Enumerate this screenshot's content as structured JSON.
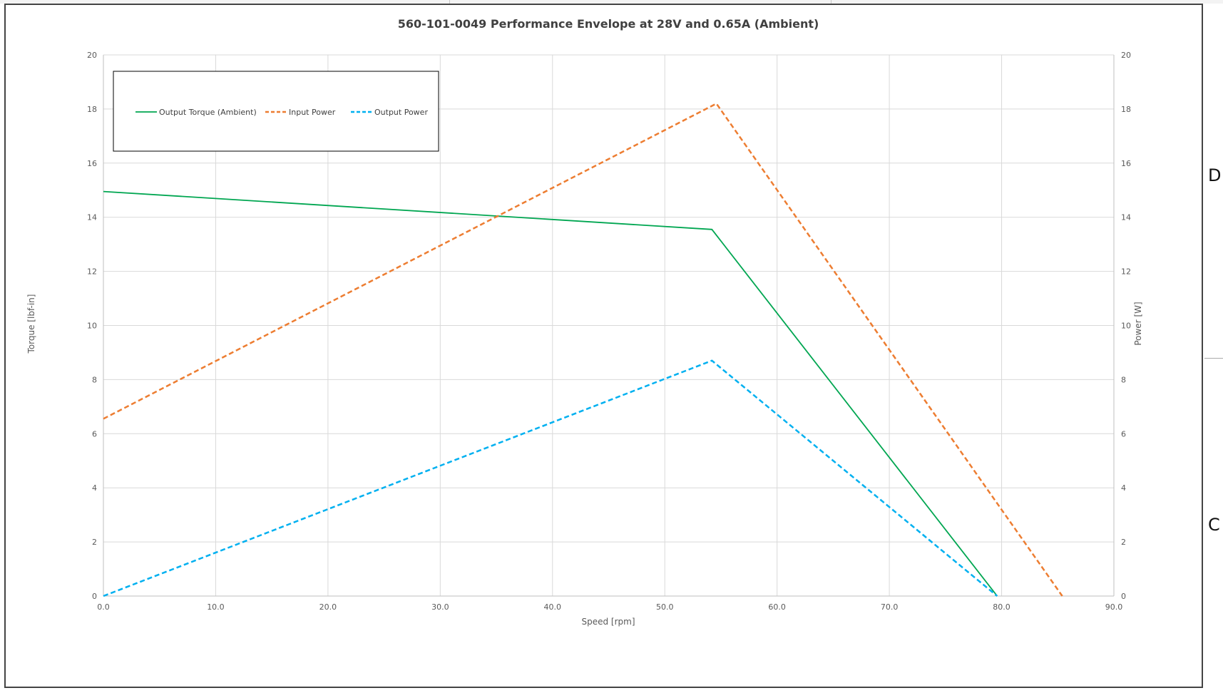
{
  "chart_data": {
    "type": "line",
    "title": "560-101-0049 Performance Envelope at 28V and 0.65A (Ambient)",
    "xlabel": "Speed [rpm]",
    "ylabel": "Torque [lbf-in]",
    "y2label": "Power [W]",
    "xlim": [
      0,
      90
    ],
    "ylim": [
      0,
      20
    ],
    "y2lim": [
      0,
      20
    ],
    "x_ticks": [
      "0.0",
      "10.0",
      "20.0",
      "30.0",
      "40.0",
      "50.0",
      "60.0",
      "70.0",
      "80.0",
      "90.0"
    ],
    "y_ticks": [
      "0",
      "2",
      "4",
      "6",
      "8",
      "10",
      "12",
      "14",
      "16",
      "18",
      "20"
    ],
    "y2_ticks": [
      "0",
      "2",
      "4",
      "6",
      "8",
      "10",
      "12",
      "14",
      "16",
      "18",
      "20"
    ],
    "grid": true,
    "legend_position": "top-left",
    "series": [
      {
        "name": "Output Torque (Ambient)",
        "axis": "left",
        "color": "#00a651",
        "style": "solid",
        "points": [
          [
            0.0,
            14.95
          ],
          [
            54.2,
            13.55
          ],
          [
            79.6,
            0.0
          ]
        ]
      },
      {
        "name": "Input Power",
        "axis": "right",
        "color": "#ed7d31",
        "style": "dashed",
        "points": [
          [
            0.0,
            6.55
          ],
          [
            54.6,
            18.2
          ],
          [
            85.4,
            0.0
          ]
        ]
      },
      {
        "name": "Output Power",
        "axis": "right",
        "color": "#00b0f0",
        "style": "dashed",
        "points": [
          [
            0.0,
            0.0
          ],
          [
            54.2,
            8.7
          ],
          [
            79.6,
            0.0
          ]
        ]
      }
    ]
  },
  "side_marks": [
    "D",
    "C"
  ]
}
